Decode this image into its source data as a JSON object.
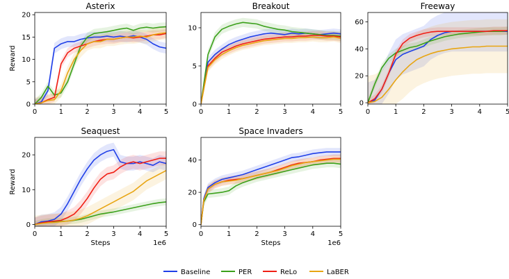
{
  "legend": {
    "position": "bottom-center",
    "entries": [
      {
        "name": "Baseline",
        "color": "#1f3fe8"
      },
      {
        "name": "PER",
        "color": "#3aa01a"
      },
      {
        "name": "ReLo",
        "color": "#f01e14"
      },
      {
        "name": "LaBER",
        "color": "#e8a512"
      }
    ]
  },
  "chart_data": [
    {
      "type": "line",
      "title": "Asterix",
      "xlabel": "",
      "ylabel": "Reward",
      "x_multiplier_label": "",
      "xlim": [
        0,
        5
      ],
      "ylim": [
        0,
        20.5
      ],
      "xticks": [
        0,
        1,
        2,
        3,
        4,
        5
      ],
      "yticks": [
        0,
        5,
        10,
        15,
        20
      ],
      "x": [
        0,
        0.25,
        0.5,
        0.75,
        1,
        1.25,
        1.5,
        1.75,
        2,
        2.25,
        2.5,
        2.75,
        3,
        3.25,
        3.5,
        3.75,
        4,
        4.25,
        4.5,
        4.75,
        5
      ],
      "series": [
        {
          "name": "Baseline",
          "color": "#1f3fe8",
          "band": 1.2,
          "values": [
            0,
            0.5,
            3,
            12.5,
            13.5,
            14,
            14,
            14.5,
            14.8,
            15,
            15,
            15.2,
            15,
            15.2,
            15,
            15.3,
            15,
            14.5,
            13.5,
            12.8,
            12.5
          ]
        },
        {
          "name": "PER",
          "color": "#3aa01a",
          "band": 1.0,
          "values": [
            0,
            1.5,
            4,
            2,
            2.5,
            5,
            9,
            13,
            15,
            15.8,
            16,
            16.2,
            16.5,
            16.8,
            17,
            16.5,
            17,
            17.2,
            17,
            17.2,
            17.3
          ]
        },
        {
          "name": "ReLo",
          "color": "#f01e14",
          "band": 1.0,
          "values": [
            0,
            0.3,
            1,
            1.5,
            9,
            11.5,
            12.5,
            13,
            13.5,
            14,
            14.3,
            14.5,
            14.5,
            14.8,
            15,
            14.8,
            15,
            15.2,
            15.5,
            15.5,
            15.8
          ]
        },
        {
          "name": "LaBER",
          "color": "#e8a512",
          "band": 1.5,
          "values": [
            0,
            0.3,
            0.8,
            1,
            3,
            7,
            10,
            12,
            13.5,
            14,
            14,
            14.5,
            14.5,
            14.8,
            15,
            15,
            15.2,
            15,
            15.5,
            15.8,
            16
          ]
        }
      ]
    },
    {
      "type": "line",
      "title": "Breakout",
      "xlabel": "",
      "ylabel": "",
      "x_multiplier_label": "",
      "xlim": [
        0,
        5
      ],
      "ylim": [
        0,
        12
      ],
      "xticks": [
        0,
        1,
        2,
        3,
        4,
        5
      ],
      "yticks": [
        0,
        5,
        10
      ],
      "x": [
        0,
        0.25,
        0.5,
        0.75,
        1,
        1.25,
        1.5,
        1.75,
        2,
        2.25,
        2.5,
        2.75,
        3,
        3.25,
        3.5,
        3.75,
        4,
        4.25,
        4.5,
        4.75,
        5
      ],
      "series": [
        {
          "name": "Baseline",
          "color": "#1f3fe8",
          "band": 0.6,
          "values": [
            0,
            5.5,
            6.5,
            7.2,
            7.8,
            8.2,
            8.5,
            8.8,
            9,
            9.2,
            9.3,
            9.2,
            9.1,
            9.3,
            9.2,
            9.3,
            9.2,
            9.1,
            9.2,
            9.3,
            9.2
          ]
        },
        {
          "name": "PER",
          "color": "#3aa01a",
          "band": 0.6,
          "values": [
            0,
            6.5,
            8.8,
            9.8,
            10.2,
            10.5,
            10.7,
            10.6,
            10.5,
            10.2,
            10,
            9.8,
            9.7,
            9.5,
            9.4,
            9.3,
            9.2,
            9.1,
            9.0,
            9.0,
            8.9
          ]
        },
        {
          "name": "ReLo",
          "color": "#f01e14",
          "band": 0.6,
          "values": [
            0,
            5,
            6,
            6.8,
            7.2,
            7.6,
            7.9,
            8.1,
            8.3,
            8.5,
            8.6,
            8.7,
            8.8,
            8.8,
            8.9,
            8.9,
            9.0,
            9.0,
            8.9,
            8.9,
            8.8
          ]
        },
        {
          "name": "LaBER",
          "color": "#e8a512",
          "band": 0.6,
          "values": [
            0,
            4.8,
            5.8,
            6.5,
            7.0,
            7.4,
            7.7,
            7.9,
            8.1,
            8.3,
            8.4,
            8.5,
            8.6,
            8.6,
            8.7,
            8.7,
            8.8,
            8.7,
            8.7,
            8.8,
            8.6
          ]
        }
      ]
    },
    {
      "type": "line",
      "title": "Freeway",
      "xlabel": "",
      "ylabel": "",
      "x_multiplier_label": "",
      "xlim": [
        0,
        5
      ],
      "ylim": [
        -1,
        67
      ],
      "xticks": [
        0,
        1,
        2,
        3,
        4,
        5
      ],
      "yticks": [
        0,
        20,
        40,
        60
      ],
      "x": [
        0,
        0.25,
        0.5,
        0.75,
        1,
        1.25,
        1.5,
        1.75,
        2,
        2.25,
        2.5,
        2.75,
        3,
        3.25,
        3.5,
        3.75,
        4,
        4.25,
        4.5,
        4.75,
        5
      ],
      "series": [
        {
          "name": "Baseline",
          "color": "#1f3fe8",
          "band": 15,
          "values": [
            0,
            2,
            10,
            22,
            32,
            36,
            38,
            40,
            42,
            47,
            50,
            52,
            53,
            53,
            53,
            53,
            53,
            53,
            53,
            53,
            53
          ]
        },
        {
          "name": "PER",
          "color": "#3aa01a",
          "band": 3,
          "values": [
            0,
            14,
            26,
            33,
            37,
            39,
            41,
            42,
            44,
            46,
            47.5,
            49,
            50,
            51,
            51.5,
            52,
            52.5,
            53,
            53,
            53,
            53.5
          ]
        },
        {
          "name": "ReLo",
          "color": "#f01e14",
          "band": 3,
          "values": [
            0,
            3,
            10,
            22,
            36,
            44,
            48,
            50,
            51.5,
            52.5,
            53,
            53,
            53,
            53,
            53,
            53,
            53,
            53,
            53.5,
            53.5,
            53.5
          ]
        },
        {
          "name": "LaBER",
          "color": "#e8a512",
          "band": 20,
          "values": [
            0,
            1,
            4,
            10,
            17,
            23,
            28,
            32,
            34.5,
            36.5,
            38,
            39,
            40,
            40.5,
            41,
            41.5,
            41.5,
            42,
            42,
            42,
            42
          ]
        }
      ]
    },
    {
      "type": "line",
      "title": "Seaquest",
      "xlabel": "Steps",
      "ylabel": "Reward",
      "x_multiplier_label": "1e6",
      "xlim": [
        0,
        5
      ],
      "ylim": [
        -0.5,
        25
      ],
      "xticks": [
        0,
        1,
        2,
        3,
        4,
        5
      ],
      "yticks": [
        0,
        10,
        20
      ],
      "x": [
        0,
        0.25,
        0.5,
        0.75,
        1,
        1.25,
        1.5,
        1.75,
        2,
        2.25,
        2.5,
        2.75,
        3,
        3.25,
        3.5,
        3.75,
        4,
        4.25,
        4.5,
        4.75,
        5
      ],
      "series": [
        {
          "name": "Baseline",
          "color": "#1f3fe8",
          "band": 2,
          "values": [
            0,
            0.8,
            1,
            1.5,
            3,
            6,
            9.5,
            13,
            16,
            18.5,
            20,
            21,
            21.5,
            18,
            17.5,
            17.5,
            18,
            17.5,
            17,
            18,
            17.5
          ]
        },
        {
          "name": "PER",
          "color": "#3aa01a",
          "band": 1.0,
          "values": [
            0,
            0.5,
            0.8,
            0.8,
            0.9,
            1.0,
            1.2,
            1.5,
            2,
            2.5,
            3,
            3.3,
            3.6,
            4,
            4.4,
            4.8,
            5.2,
            5.6,
            6,
            6.3,
            6.5
          ]
        },
        {
          "name": "ReLo",
          "color": "#f01e14",
          "band": 2,
          "values": [
            0,
            0.5,
            0.8,
            1,
            1.2,
            2,
            3,
            5,
            7.5,
            10.5,
            13,
            14.5,
            15,
            16.5,
            17.5,
            18,
            17.5,
            18,
            18.5,
            19,
            19
          ]
        },
        {
          "name": "LaBER",
          "color": "#e8a512",
          "band": 2.5,
          "values": [
            0,
            0.3,
            0.5,
            0.6,
            0.8,
            1,
            1.3,
            1.8,
            2.5,
            3.5,
            4.5,
            5.5,
            6.5,
            7.5,
            8.5,
            9.5,
            11,
            12.5,
            13.5,
            14.5,
            15.5
          ]
        }
      ]
    },
    {
      "type": "line",
      "title": "Space Invaders",
      "xlabel": "Steps",
      "ylabel": "",
      "x_multiplier_label": "1e6",
      "xlim": [
        0,
        5
      ],
      "ylim": [
        -1,
        54
      ],
      "xticks": [
        0,
        1,
        2,
        3,
        4,
        5
      ],
      "yticks": [
        0,
        20,
        40
      ],
      "x": [
        0,
        0.1,
        0.25,
        0.5,
        0.75,
        1,
        1.25,
        1.5,
        1.75,
        2,
        2.25,
        2.5,
        2.75,
        3,
        3.25,
        3.5,
        3.75,
        4,
        4.25,
        4.5,
        4.75,
        5
      ],
      "series": [
        {
          "name": "Baseline",
          "color": "#1f3fe8",
          "band": 2.5,
          "values": [
            0,
            16,
            23,
            26,
            28,
            29,
            30,
            31,
            32.5,
            34,
            35.5,
            37,
            38.5,
            40,
            41.5,
            42,
            43,
            44,
            44.5,
            45,
            45,
            45
          ]
        },
        {
          "name": "PER",
          "color": "#3aa01a",
          "band": 2.5,
          "values": [
            0,
            14,
            19,
            19.5,
            20,
            21,
            24,
            26,
            27.5,
            29,
            30,
            31,
            32,
            33,
            34,
            35,
            36,
            37,
            37.5,
            38,
            38,
            37.5
          ]
        },
        {
          "name": "ReLo",
          "color": "#f01e14",
          "band": 2.5,
          "values": [
            0,
            15,
            22,
            25,
            26.5,
            27.5,
            28,
            28.5,
            29.5,
            30.5,
            31.5,
            32.5,
            34,
            35.5,
            37,
            38,
            38.5,
            39,
            40,
            40.5,
            41,
            41
          ]
        },
        {
          "name": "LaBER",
          "color": "#e8a512",
          "band": 2.5,
          "values": [
            0,
            15,
            22,
            25,
            26.5,
            27,
            27.5,
            28.5,
            29.5,
            30.5,
            31.5,
            32.5,
            33.5,
            35,
            36.5,
            37.5,
            38.5,
            39,
            39.5,
            40,
            40.5,
            40.5
          ]
        }
      ]
    }
  ]
}
